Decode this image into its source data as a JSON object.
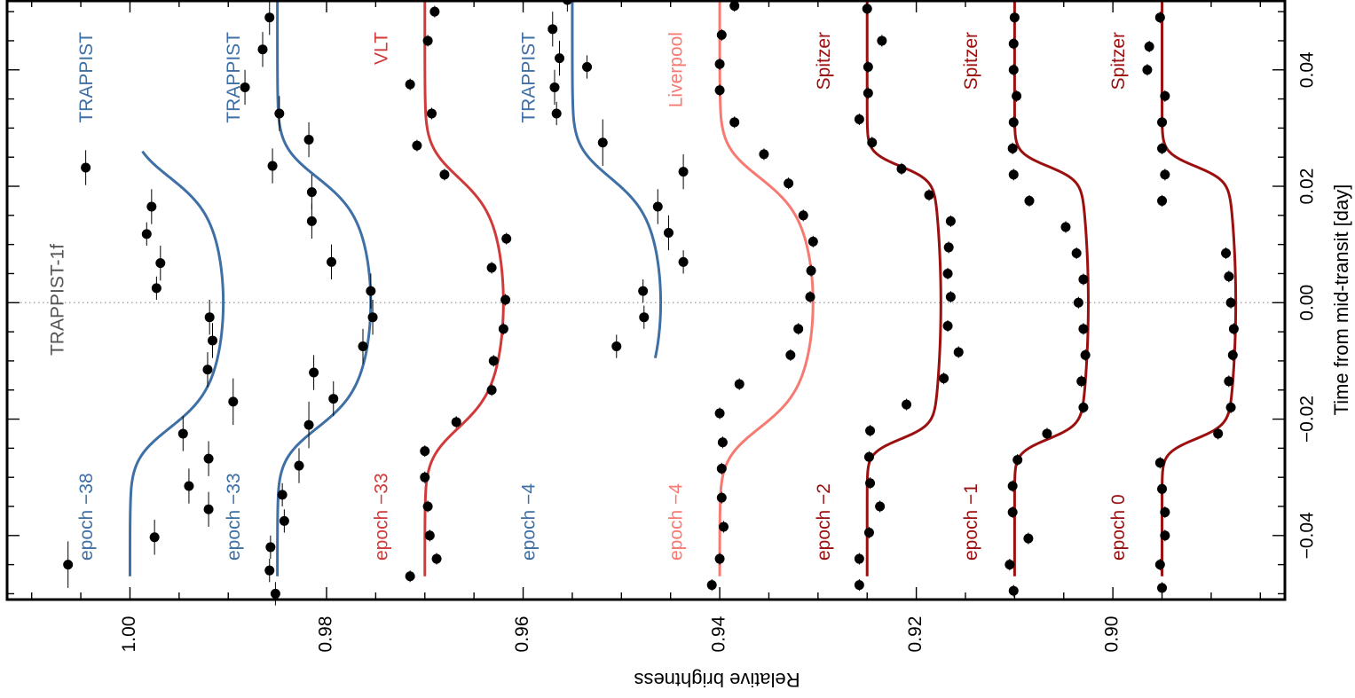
{
  "chart_data": {
    "type": "scatter",
    "orientation": "rotated-90",
    "title": "TRAPPIST-1f",
    "xlabel": "Relative brightness",
    "ylabel": "Time from mid-transit [day]",
    "xlim": [
      1.0125,
      0.8825
    ],
    "ylim": [
      -0.051,
      0.052
    ],
    "brightness_ticks": [
      1.0,
      0.98,
      0.96,
      0.94,
      0.92,
      0.9
    ],
    "brightness_tick_labels": [
      "1.00",
      "0.98",
      "0.96",
      "0.94",
      "0.92",
      "0.90"
    ],
    "time_ticks": [
      -0.04,
      -0.02,
      0.0,
      0.02,
      0.04
    ],
    "time_tick_labels": [
      "−0.04",
      "−0.02",
      "0.00",
      "0.02",
      "0.04"
    ],
    "grid": false,
    "zero_line": "dotted",
    "colors": {
      "TRAPPIST": "#3e6fa5",
      "VLT": "#d13a3a",
      "Liverpool": "#f77a72",
      "Spitzer": "#9b0f0f",
      "points": "#000000",
      "frame": "#000000"
    },
    "series": [
      {
        "name": "TRAPPIST",
        "epoch": "epoch −38",
        "instrument": "TRAPPIST",
        "offset": 1.0,
        "depth": 0.0095,
        "points": [
          {
            "x": 0.0232,
            "y": 1.0045,
            "xerr": 0.003
          },
          {
            "x": 0.0165,
            "y": 0.9978,
            "xerr": 0.003
          },
          {
            "x": 0.0118,
            "y": 0.9983,
            "xerr": 0.002
          },
          {
            "x": 0.0068,
            "y": 0.9969,
            "xerr": 0.003
          },
          {
            "x": 0.0025,
            "y": 0.9973,
            "xerr": 0.002
          },
          {
            "x": -0.0025,
            "y": 0.9919,
            "xerr": 0.003
          },
          {
            "x": -0.0065,
            "y": 0.9916,
            "xerr": 0.003
          },
          {
            "x": -0.0115,
            "y": 0.9921,
            "xerr": 0.003
          },
          {
            "x": -0.017,
            "y": 0.9895,
            "xerr": 0.004
          },
          {
            "x": -0.0225,
            "y": 0.9946,
            "xerr": 0.003
          },
          {
            "x": -0.0268,
            "y": 0.992,
            "xerr": 0.003
          },
          {
            "x": -0.0315,
            "y": 0.994,
            "xerr": 0.003
          },
          {
            "x": -0.0355,
            "y": 0.992,
            "xerr": 0.003
          },
          {
            "x": -0.0403,
            "y": 0.9975,
            "xerr": 0.003
          },
          {
            "x": -0.045,
            "y": 1.0063,
            "xerr": 0.004
          }
        ]
      },
      {
        "name": "TRAPPIST",
        "epoch": "epoch −33",
        "instrument": "TRAPPIST",
        "offset": 0.985,
        "depth": 0.0095,
        "points": [
          {
            "x": 0.049,
            "y": 0.9858,
            "xerr": 0.003
          },
          {
            "x": 0.0435,
            "y": 0.9865,
            "xerr": 0.003
          },
          {
            "x": 0.037,
            "y": 0.9883,
            "xerr": 0.003
          },
          {
            "x": 0.0325,
            "y": 0.9848,
            "xerr": 0.003
          },
          {
            "x": 0.028,
            "y": 0.9818,
            "xerr": 0.003
          },
          {
            "x": 0.0235,
            "y": 0.9855,
            "xerr": 0.003
          },
          {
            "x": 0.019,
            "y": 0.9815,
            "xerr": 0.003
          },
          {
            "x": 0.014,
            "y": 0.9815,
            "xerr": 0.003
          },
          {
            "x": 0.007,
            "y": 0.9795,
            "xerr": 0.003
          },
          {
            "x": 0.002,
            "y": 0.9755,
            "xerr": 0.003
          },
          {
            "x": -0.0025,
            "y": 0.9753,
            "xerr": 0.003
          },
          {
            "x": -0.0075,
            "y": 0.9763,
            "xerr": 0.003
          },
          {
            "x": -0.012,
            "y": 0.9813,
            "xerr": 0.003
          },
          {
            "x": -0.0165,
            "y": 0.9793,
            "xerr": 0.003
          },
          {
            "x": -0.021,
            "y": 0.9818,
            "xerr": 0.004
          },
          {
            "x": -0.028,
            "y": 0.9828,
            "xerr": 0.003
          },
          {
            "x": -0.033,
            "y": 0.9845,
            "xerr": 0.002
          },
          {
            "x": -0.0375,
            "y": 0.9843,
            "xerr": 0.002
          },
          {
            "x": -0.042,
            "y": 0.9857,
            "xerr": 0.002
          },
          {
            "x": -0.046,
            "y": 0.9858,
            "xerr": 0.002
          },
          {
            "x": -0.05,
            "y": 0.9852,
            "xerr": 0.002
          }
        ]
      },
      {
        "name": "VLT",
        "epoch": "epoch −33",
        "instrument": "VLT",
        "offset": 0.97,
        "depth": 0.008,
        "points": [
          {
            "x": 0.05,
            "y": 0.969,
            "xerr": 0.001
          },
          {
            "x": 0.045,
            "y": 0.9697,
            "xerr": 0.001
          },
          {
            "x": 0.0375,
            "y": 0.9715,
            "xerr": 0.001
          },
          {
            "x": 0.0325,
            "y": 0.9693,
            "xerr": 0.001
          },
          {
            "x": 0.027,
            "y": 0.9708,
            "xerr": 0.001
          },
          {
            "x": 0.022,
            "y": 0.968,
            "xerr": 0.001
          },
          {
            "x": 0.011,
            "y": 0.9617,
            "xerr": 0.001
          },
          {
            "x": 0.006,
            "y": 0.9632,
            "xerr": 0.001
          },
          {
            "x": 0.0005,
            "y": 0.9618,
            "xerr": 0.001
          },
          {
            "x": -0.0045,
            "y": 0.962,
            "xerr": 0.001
          },
          {
            "x": -0.01,
            "y": 0.963,
            "xerr": 0.001
          },
          {
            "x": -0.015,
            "y": 0.9632,
            "xerr": 0.001
          },
          {
            "x": -0.0205,
            "y": 0.9668,
            "xerr": 0.001
          },
          {
            "x": -0.0255,
            "y": 0.97,
            "xerr": 0.001
          },
          {
            "x": -0.03,
            "y": 0.97,
            "xerr": 0.001
          },
          {
            "x": -0.035,
            "y": 0.9697,
            "xerr": 0.001
          },
          {
            "x": -0.04,
            "y": 0.9695,
            "xerr": 0.001
          },
          {
            "x": -0.044,
            "y": 0.9688,
            "xerr": 0.001
          },
          {
            "x": -0.047,
            "y": 0.9715,
            "xerr": 0.001
          }
        ]
      },
      {
        "name": "TRAPPIST",
        "epoch": "epoch −4",
        "instrument": "TRAPPIST",
        "offset": 0.955,
        "depth": 0.009,
        "points": [
          {
            "x": 0.052,
            "y": 0.9555,
            "xerr": 0.002
          },
          {
            "x": 0.047,
            "y": 0.957,
            "xerr": 0.003
          },
          {
            "x": 0.042,
            "y": 0.9563,
            "xerr": 0.003
          },
          {
            "x": 0.0405,
            "y": 0.9535,
            "xerr": 0.002
          },
          {
            "x": 0.037,
            "y": 0.9568,
            "xerr": 0.003
          },
          {
            "x": 0.0325,
            "y": 0.9566,
            "xerr": 0.002
          },
          {
            "x": 0.0275,
            "y": 0.9519,
            "xerr": 0.004
          },
          {
            "x": 0.0225,
            "y": 0.9437,
            "xerr": 0.003
          },
          {
            "x": 0.0165,
            "y": 0.9463,
            "xerr": 0.003
          },
          {
            "x": 0.012,
            "y": 0.9452,
            "xerr": 0.003
          },
          {
            "x": 0.007,
            "y": 0.9437,
            "xerr": 0.002
          },
          {
            "x": 0.002,
            "y": 0.9478,
            "xerr": 0.002
          },
          {
            "x": -0.0025,
            "y": 0.9477,
            "xerr": 0.002
          },
          {
            "x": -0.0075,
            "y": 0.9505,
            "xerr": 0.002
          }
        ]
      },
      {
        "name": "Liverpool",
        "epoch": "epoch −4",
        "instrument": "Liverpool",
        "offset": 0.94,
        "depth": 0.0095,
        "points": [
          {
            "x": 0.051,
            "y": 0.9385,
            "xerr": 0.001
          },
          {
            "x": 0.046,
            "y": 0.9398,
            "xerr": 0.001
          },
          {
            "x": 0.041,
            "y": 0.94,
            "xerr": 0.001
          },
          {
            "x": 0.0365,
            "y": 0.94,
            "xerr": 0.001
          },
          {
            "x": 0.031,
            "y": 0.9385,
            "xerr": 0.001
          },
          {
            "x": 0.0255,
            "y": 0.9355,
            "xerr": 0.001
          },
          {
            "x": 0.0205,
            "y": 0.933,
            "xerr": 0.001
          },
          {
            "x": 0.015,
            "y": 0.9315,
            "xerr": 0.001
          },
          {
            "x": 0.0105,
            "y": 0.9305,
            "xerr": 0.001
          },
          {
            "x": 0.0055,
            "y": 0.9307,
            "xerr": 0.001
          },
          {
            "x": 0.001,
            "y": 0.9308,
            "xerr": 0.001
          },
          {
            "x": -0.0045,
            "y": 0.932,
            "xerr": 0.001
          },
          {
            "x": -0.009,
            "y": 0.9328,
            "xerr": 0.001
          },
          {
            "x": -0.014,
            "y": 0.938,
            "xerr": 0.001
          },
          {
            "x": -0.019,
            "y": 0.94,
            "xerr": 0.001
          },
          {
            "x": -0.024,
            "y": 0.9397,
            "xerr": 0.001
          },
          {
            "x": -0.0285,
            "y": 0.9398,
            "xerr": 0.001
          },
          {
            "x": -0.0335,
            "y": 0.9398,
            "xerr": 0.001
          },
          {
            "x": -0.0385,
            "y": 0.9396,
            "xerr": 0.001
          },
          {
            "x": -0.044,
            "y": 0.94,
            "xerr": 0.001
          },
          {
            "x": -0.0485,
            "y": 0.9408,
            "xerr": 0.001
          }
        ]
      },
      {
        "name": "Spitzer",
        "epoch": "epoch −2",
        "instrument": "Spitzer",
        "offset": 0.925,
        "depth": 0.0075,
        "points": [
          {
            "x": 0.0505,
            "y": 0.925,
            "xerr": 0.001
          },
          {
            "x": 0.045,
            "y": 0.9235,
            "xerr": 0.001
          },
          {
            "x": 0.0405,
            "y": 0.9249,
            "xerr": 0.001
          },
          {
            "x": 0.036,
            "y": 0.9249,
            "xerr": 0.001
          },
          {
            "x": 0.0315,
            "y": 0.9258,
            "xerr": 0.001
          },
          {
            "x": 0.0275,
            "y": 0.9245,
            "xerr": 0.001
          },
          {
            "x": 0.023,
            "y": 0.9215,
            "xerr": 0.001
          },
          {
            "x": 0.0185,
            "y": 0.9187,
            "xerr": 0.001
          },
          {
            "x": 0.014,
            "y": 0.9165,
            "xerr": 0.001
          },
          {
            "x": 0.0095,
            "y": 0.9167,
            "xerr": 0.001
          },
          {
            "x": 0.005,
            "y": 0.9168,
            "xerr": 0.001
          },
          {
            "x": 0.001,
            "y": 0.9165,
            "xerr": 0.001
          },
          {
            "x": -0.004,
            "y": 0.9168,
            "xerr": 0.001
          },
          {
            "x": -0.0085,
            "y": 0.9157,
            "xerr": 0.001
          },
          {
            "x": -0.013,
            "y": 0.9172,
            "xerr": 0.001
          },
          {
            "x": -0.0175,
            "y": 0.921,
            "xerr": 0.001
          },
          {
            "x": -0.022,
            "y": 0.9247,
            "xerr": 0.001
          },
          {
            "x": -0.0265,
            "y": 0.9248,
            "xerr": 0.001
          },
          {
            "x": -0.031,
            "y": 0.9247,
            "xerr": 0.001
          },
          {
            "x": -0.035,
            "y": 0.9237,
            "xerr": 0.001
          },
          {
            "x": -0.0395,
            "y": 0.9248,
            "xerr": 0.001
          },
          {
            "x": -0.044,
            "y": 0.9258,
            "xerr": 0.001
          },
          {
            "x": -0.0485,
            "y": 0.9258,
            "xerr": 0.001
          }
        ]
      },
      {
        "name": "Spitzer",
        "epoch": "epoch −1",
        "instrument": "Spitzer",
        "offset": 0.91,
        "depth": 0.0075,
        "points": [
          {
            "x": 0.049,
            "y": 0.91,
            "xerr": 0.001
          },
          {
            "x": 0.0445,
            "y": 0.9101,
            "xerr": 0.001
          },
          {
            "x": 0.04,
            "y": 0.9101,
            "xerr": 0.001
          },
          {
            "x": 0.0355,
            "y": 0.9098,
            "xerr": 0.001
          },
          {
            "x": 0.031,
            "y": 0.9101,
            "xerr": 0.001
          },
          {
            "x": 0.0265,
            "y": 0.9102,
            "xerr": 0.001
          },
          {
            "x": 0.022,
            "y": 0.9101,
            "xerr": 0.001
          },
          {
            "x": 0.0175,
            "y": 0.9085,
            "xerr": 0.001
          },
          {
            "x": 0.013,
            "y": 0.9048,
            "xerr": 0.001
          },
          {
            "x": 0.0085,
            "y": 0.9037,
            "xerr": 0.001
          },
          {
            "x": 0.004,
            "y": 0.903,
            "xerr": 0.001
          },
          {
            "x": 0.0,
            "y": 0.9035,
            "xerr": 0.001
          },
          {
            "x": -0.0045,
            "y": 0.903,
            "xerr": 0.001
          },
          {
            "x": -0.009,
            "y": 0.9028,
            "xerr": 0.001
          },
          {
            "x": -0.0135,
            "y": 0.9032,
            "xerr": 0.001
          },
          {
            "x": -0.018,
            "y": 0.903,
            "xerr": 0.001
          },
          {
            "x": -0.0225,
            "y": 0.9067,
            "xerr": 0.001
          },
          {
            "x": -0.027,
            "y": 0.9097,
            "xerr": 0.001
          },
          {
            "x": -0.0315,
            "y": 0.9102,
            "xerr": 0.001
          },
          {
            "x": -0.036,
            "y": 0.9102,
            "xerr": 0.001
          },
          {
            "x": -0.0405,
            "y": 0.9086,
            "xerr": 0.001
          },
          {
            "x": -0.045,
            "y": 0.9105,
            "xerr": 0.001
          },
          {
            "x": -0.0495,
            "y": 0.9101,
            "xerr": 0.001
          }
        ]
      },
      {
        "name": "Spitzer",
        "epoch": "epoch 0",
        "instrument": "Spitzer",
        "offset": 0.895,
        "depth": 0.0075,
        "points": [
          {
            "x": 0.049,
            "y": 0.8952,
            "xerr": 0.001
          },
          {
            "x": 0.044,
            "y": 0.8963,
            "xerr": 0.001
          },
          {
            "x": 0.04,
            "y": 0.8965,
            "xerr": 0.001
          },
          {
            "x": 0.0355,
            "y": 0.8947,
            "xerr": 0.001
          },
          {
            "x": 0.031,
            "y": 0.895,
            "xerr": 0.001
          },
          {
            "x": 0.0265,
            "y": 0.895,
            "xerr": 0.001
          },
          {
            "x": 0.022,
            "y": 0.8947,
            "xerr": 0.001
          },
          {
            "x": 0.0175,
            "y": 0.895,
            "xerr": 0.001
          },
          {
            "x": 0.0085,
            "y": 0.8885,
            "xerr": 0.001
          },
          {
            "x": 0.0045,
            "y": 0.8882,
            "xerr": 0.001
          },
          {
            "x": 0.0,
            "y": 0.888,
            "xerr": 0.001
          },
          {
            "x": -0.0045,
            "y": 0.8877,
            "xerr": 0.001
          },
          {
            "x": -0.009,
            "y": 0.8878,
            "xerr": 0.001
          },
          {
            "x": -0.0135,
            "y": 0.8882,
            "xerr": 0.001
          },
          {
            "x": -0.018,
            "y": 0.888,
            "xerr": 0.001
          },
          {
            "x": -0.0225,
            "y": 0.8893,
            "xerr": 0.001
          },
          {
            "x": -0.0275,
            "y": 0.8952,
            "xerr": 0.001
          },
          {
            "x": -0.032,
            "y": 0.895,
            "xerr": 0.001
          },
          {
            "x": -0.036,
            "y": 0.8947,
            "xerr": 0.001
          },
          {
            "x": -0.04,
            "y": 0.8947,
            "xerr": 0.001
          },
          {
            "x": -0.045,
            "y": 0.8952,
            "xerr": 0.001
          },
          {
            "x": -0.049,
            "y": 0.895,
            "xerr": 0.001
          }
        ]
      }
    ]
  }
}
